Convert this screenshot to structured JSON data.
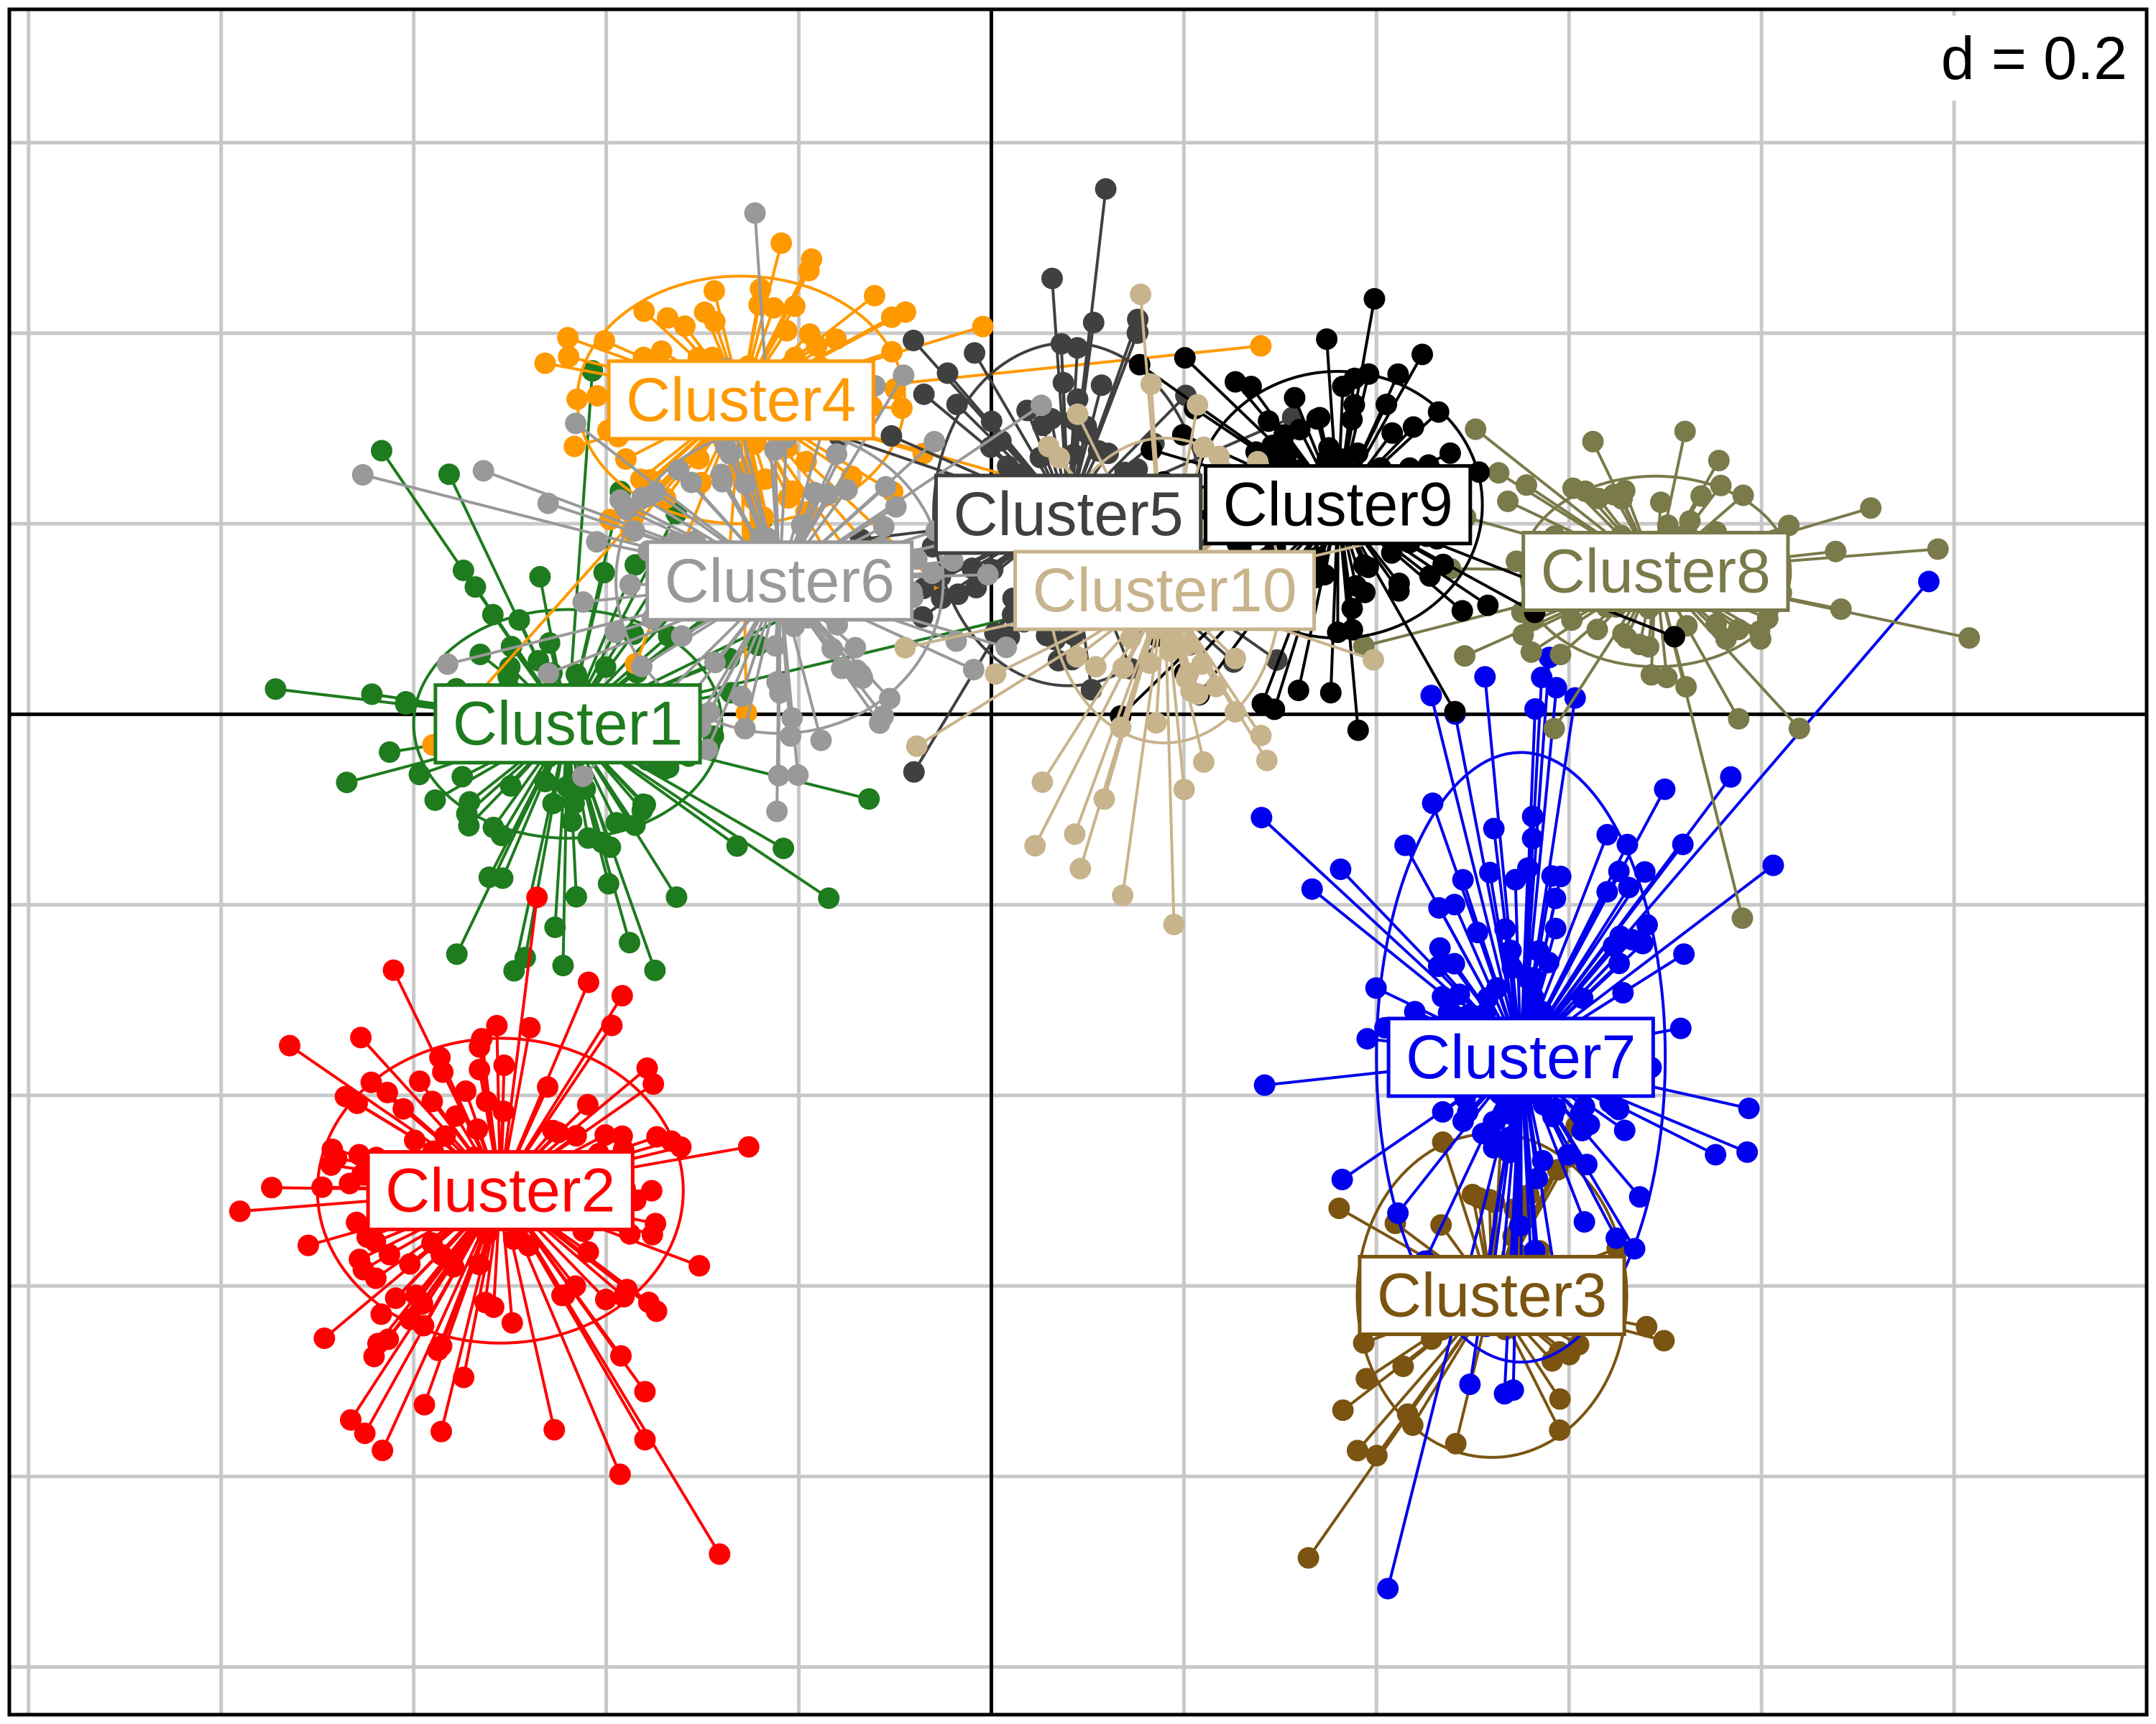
{
  "chart_data": {
    "type": "scatter",
    "plot_style": "ade4 s.class cluster star plot with inertia ellipses",
    "scale_label": "d = 0.2",
    "grid": true,
    "grid_step": 0.2,
    "xlim": [
      -1.02,
      1.2
    ],
    "ylim": [
      -1.05,
      0.74
    ],
    "axes_origin": [
      0,
      0
    ],
    "clusters": [
      {
        "name": "Cluster1",
        "color": "#1e7b1e",
        "center": [
          -0.44,
          -0.01
        ],
        "ellipse": {
          "rx": 0.16,
          "ry": 0.12
        },
        "spread": [
          0.14,
          0.14
        ],
        "n_points": 120
      },
      {
        "name": "Cluster2",
        "color": "#ff0000",
        "center": [
          -0.51,
          -0.5
        ],
        "ellipse": {
          "rx": 0.19,
          "ry": 0.16
        },
        "spread": [
          0.17,
          0.17
        ],
        "n_points": 150
      },
      {
        "name": "Cluster3",
        "color": "#7a5410",
        "center": [
          0.52,
          -0.61
        ],
        "ellipse": {
          "rx": 0.14,
          "ry": 0.17
        },
        "spread": [
          0.11,
          0.14
        ],
        "n_points": 60
      },
      {
        "name": "Cluster4",
        "color": "#ff9900",
        "center": [
          -0.26,
          0.33
        ],
        "ellipse": {
          "rx": 0.17,
          "ry": 0.13
        },
        "spread": [
          0.16,
          0.12
        ],
        "n_points": 110
      },
      {
        "name": "Cluster5",
        "color": "#404040",
        "center": [
          0.08,
          0.21
        ],
        "ellipse": {
          "rx": 0.14,
          "ry": 0.18
        },
        "spread": [
          0.13,
          0.16
        ],
        "n_points": 110
      },
      {
        "name": "Cluster6",
        "color": "#999999",
        "center": [
          -0.22,
          0.14
        ],
        "ellipse": {
          "rx": 0.17,
          "ry": 0.16
        },
        "spread": [
          0.17,
          0.16
        ],
        "n_points": 110
      },
      {
        "name": "Cluster7",
        "color": "#0000ee",
        "center": [
          0.55,
          -0.36
        ],
        "ellipse": {
          "rx": 0.15,
          "ry": 0.32
        },
        "spread": [
          0.13,
          0.24
        ],
        "n_points": 150
      },
      {
        "name": "Cluster8",
        "color": "#7a7a4a",
        "center": [
          0.69,
          0.15
        ],
        "ellipse": {
          "rx": 0.14,
          "ry": 0.1
        },
        "spread": [
          0.14,
          0.12
        ],
        "n_points": 80
      },
      {
        "name": "Cluster9",
        "color": "#000000",
        "center": [
          0.36,
          0.22
        ],
        "ellipse": {
          "rx": 0.15,
          "ry": 0.14
        },
        "spread": [
          0.15,
          0.14
        ],
        "n_points": 110
      },
      {
        "name": "Cluster10",
        "color": "#c8b48c",
        "center": [
          0.18,
          0.13
        ],
        "ellipse": {
          "rx": 0.12,
          "ry": 0.16
        },
        "spread": [
          0.12,
          0.16
        ],
        "n_points": 90
      }
    ]
  }
}
